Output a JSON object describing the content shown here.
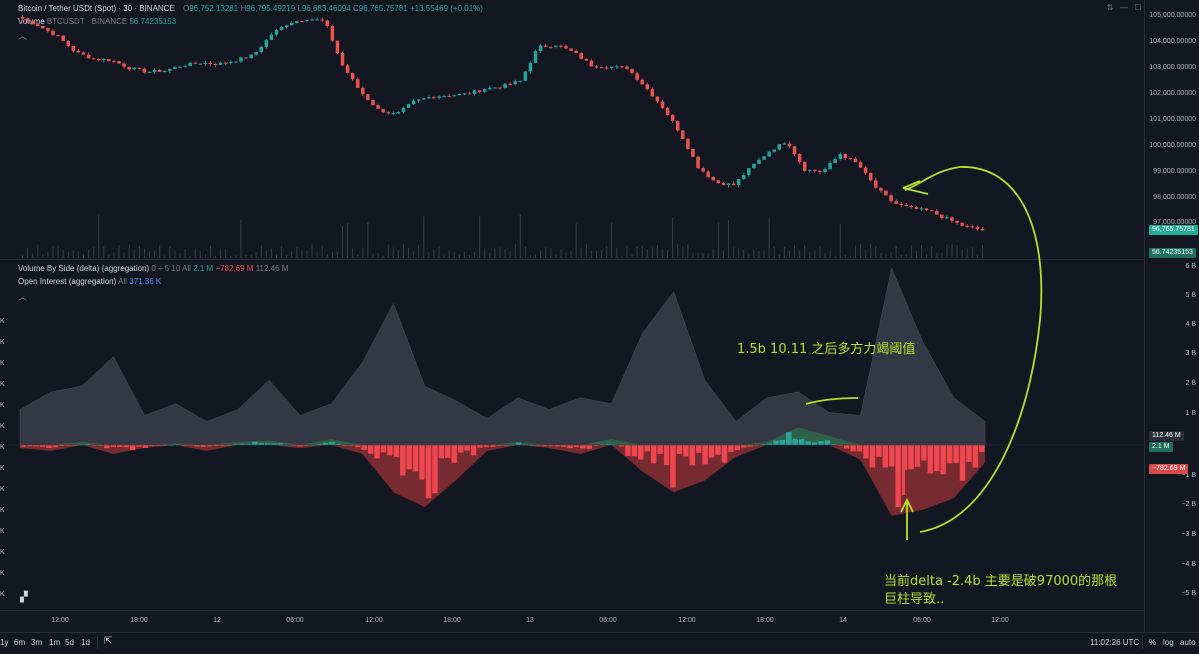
{
  "header": {
    "symbol": "Bitcoin / Tether USDt (Spot) · 30 · BINANCE",
    "o_label": "O",
    "o_value": "96,752.13281",
    "h_label": "H",
    "h_value": "96,795.49219",
    "l_label": "L",
    "l_value": "96,683.46094",
    "c_label": "C",
    "c_value": "96,765.75781",
    "change": "+13.55469 (+0.01%)",
    "volume_label": "Volume",
    "volume_symbol": "BTCUSDT · BINANCE",
    "volume_value": "56.74235153"
  },
  "indicators": {
    "delta_name": "Volume By Side (delta) (aggregation)",
    "delta_params": "0 ÷ 5 10 All",
    "delta_v1": "2.1 M",
    "delta_v2": "−782.69 M",
    "delta_v3": "112.46 M",
    "oi_name": "Open Interest (aggregation)",
    "oi_params": "All",
    "oi_value": "371.36 K"
  },
  "price_scale": {
    "ticks": [
      "105,000.00000",
      "104,000.00000",
      "103,000.00000",
      "102,000.00000",
      "101,000.00000",
      "100,000.00000",
      "99,000.00000",
      "98,000.00000",
      "97,000.00000"
    ],
    "last_price": "96,765.75781",
    "volume_badge": "56.74235153"
  },
  "delta_scale": {
    "ticks": [
      "6 B",
      "5 B",
      "4 B",
      "3 B",
      "2 B",
      "1 B",
      "−1 B",
      "−2 B",
      "−3 B",
      "−4 B",
      "−5 B"
    ],
    "badge_oi": "112.46 M",
    "badge_delta_pos": "2.1 M",
    "badge_delta_neg": "−782.69 M"
  },
  "left_scale": {
    "ticks": [
      "K",
      "K",
      "K",
      "K",
      "K",
      "K",
      "K",
      "K",
      "K",
      "K",
      "K",
      "K",
      "K",
      "K"
    ]
  },
  "time_axis": {
    "labels": [
      "12:00",
      "18:00",
      "12",
      "06:00",
      "12:00",
      "18:00",
      "13",
      "06:00",
      "12:00",
      "18:00",
      "14",
      "06:00",
      "12:00"
    ]
  },
  "bottom_bar": {
    "ranges": [
      "1y",
      "6m",
      "3m",
      "1m",
      "5d",
      "1d"
    ],
    "clock": "11:02:26 UTC",
    "pct": "%",
    "log": "log",
    "auto": "auto"
  },
  "annotations": {
    "top": "1.5b    10.11 之后多方力竭阈值",
    "bottom_line1": "当前delta -2.4b  主要是破97000的那根",
    "bottom_line2": "巨柱导致.."
  },
  "colors": {
    "background": "#131722",
    "up": "#26a69a",
    "down": "#ef5350",
    "oi_area": "#3a3e4a",
    "annotation": "#b8e02a"
  },
  "chart_data": {
    "type": "candlestick",
    "title": "Bitcoin / Tether USDt (Spot) · 30 · BINANCE",
    "ylim": [
      96500,
      105300
    ],
    "x": [
      "12:00",
      "18:00",
      "12",
      "06:00",
      "12:00",
      "18:00",
      "13",
      "06:00",
      "12:00",
      "18:00",
      "14",
      "06:00",
      "12:00"
    ],
    "close_path": [
      104900,
      104600,
      104200,
      103600,
      103350,
      103300,
      103000,
      102850,
      102900,
      103100,
      103200,
      103150,
      103300,
      103500,
      104300,
      104750,
      104900,
      104800,
      103100,
      102100,
      101400,
      101200,
      101700,
      101900,
      101950,
      102000,
      102200,
      102300,
      102500,
      103800,
      103900,
      103600,
      103100,
      103050,
      103000,
      102300,
      101500,
      100500,
      99200,
      98600,
      98500,
      99200,
      99800,
      100200,
      99100,
      99000,
      99700,
      99300,
      98400,
      97800,
      97600,
      97500,
      97200,
      96900,
      96766
    ],
    "delta_series": [
      -0.1,
      -0.2,
      0.1,
      -0.3,
      -0.1,
      0.05,
      -0.2,
      0.1,
      0.15,
      -0.1,
      0.2,
      -0.3,
      -1.6,
      -2.1,
      -1.2,
      -0.2,
      0.1,
      -0.1,
      -0.3,
      0.2,
      -0.9,
      -1.6,
      -1.2,
      -0.4,
      0.1,
      0.6,
      0.3,
      -0.5,
      -2.4,
      -2.2,
      -1.8,
      -0.6
    ],
    "open_interest_series": [
      1.2,
      1.8,
      2.0,
      3.0,
      1.0,
      1.4,
      0.8,
      1.2,
      2.2,
      1.0,
      1.4,
      2.8,
      4.8,
      2.0,
      1.5,
      0.9,
      1.6,
      1.2,
      1.6,
      1.4,
      3.8,
      5.2,
      2.2,
      0.8,
      1.6,
      1.8,
      1.1,
      1.0,
      6.0,
      3.5,
      1.6,
      0.8
    ]
  }
}
